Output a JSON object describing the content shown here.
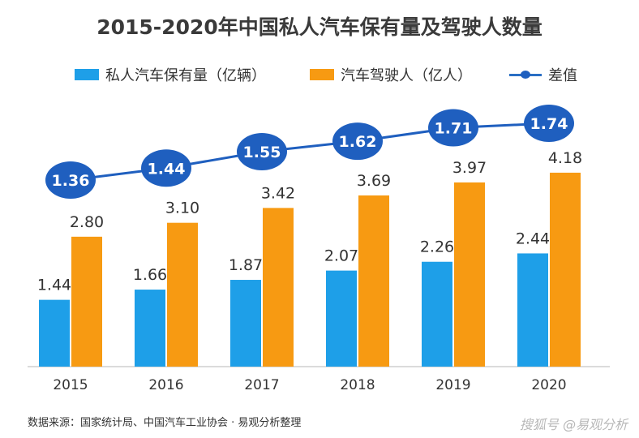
{
  "chart_data": {
    "type": "bar",
    "title": "2015-2020年中国私人汽车保有量及驾驶人数量",
    "categories": [
      "2015",
      "2016",
      "2017",
      "2018",
      "2019",
      "2020"
    ],
    "series": [
      {
        "name": "私人汽车保有量（亿辆）",
        "type": "bar",
        "color": "#1e9fe8",
        "values": [
          1.44,
          1.66,
          1.87,
          2.07,
          2.26,
          2.44
        ]
      },
      {
        "name": "汽车驾驶人（亿人）",
        "type": "bar",
        "color": "#f79a12",
        "values": [
          2.8,
          3.1,
          3.42,
          3.69,
          3.97,
          4.18
        ]
      },
      {
        "name": "差值",
        "type": "line",
        "color": "#1f5fbf",
        "values": [
          1.36,
          1.44,
          1.55,
          1.62,
          1.71,
          1.74
        ]
      }
    ],
    "xlabel": "",
    "ylabel": "",
    "grid": false,
    "legend": "top"
  },
  "source": "数据来源：国家统计局、中国汽车工业协会 · 易观分析整理",
  "watermark": "搜狐号 @易观分析"
}
